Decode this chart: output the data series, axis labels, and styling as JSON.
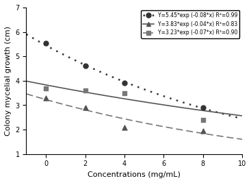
{
  "series": [
    {
      "label": "Y=5.45*exp (-0.08*x) R²=0.99",
      "a": 5.45,
      "b": -0.08,
      "marker": "o",
      "linestyle": "dotted",
      "color": "#333333",
      "data_x": [
        0,
        2,
        4,
        8
      ],
      "data_y": [
        5.55,
        4.6,
        3.9,
        2.9
      ]
    },
    {
      "label": "Y=3.83*exp (-0.04*x) R²=0.83",
      "a": 3.83,
      "b": -0.04,
      "marker": "^",
      "linestyle": "solid",
      "color": "#555555",
      "data_x": [
        0,
        2,
        4,
        8
      ],
      "data_y": [
        3.3,
        2.9,
        2.1,
        1.95
      ]
    },
    {
      "label": "Y=3.23*exp (-0.07*x) R²=0.90",
      "a": 3.23,
      "b": -0.07,
      "marker": "s",
      "linestyle": "dashed",
      "color": "#777777",
      "data_x": [
        0,
        2,
        4,
        8
      ],
      "data_y": [
        3.7,
        3.6,
        3.5,
        2.4
      ]
    }
  ],
  "xlim": [
    -1,
    10
  ],
  "ylim": [
    1,
    7
  ],
  "xticks": [
    0,
    2,
    4,
    6,
    8,
    10
  ],
  "yticks": [
    1,
    2,
    3,
    4,
    5,
    6,
    7
  ],
  "xlabel": "Concentrations (mg/mL)",
  "ylabel": "Colony mycelial growth (cm)",
  "figsize": [
    3.67,
    2.67
  ],
  "dpi": 100
}
